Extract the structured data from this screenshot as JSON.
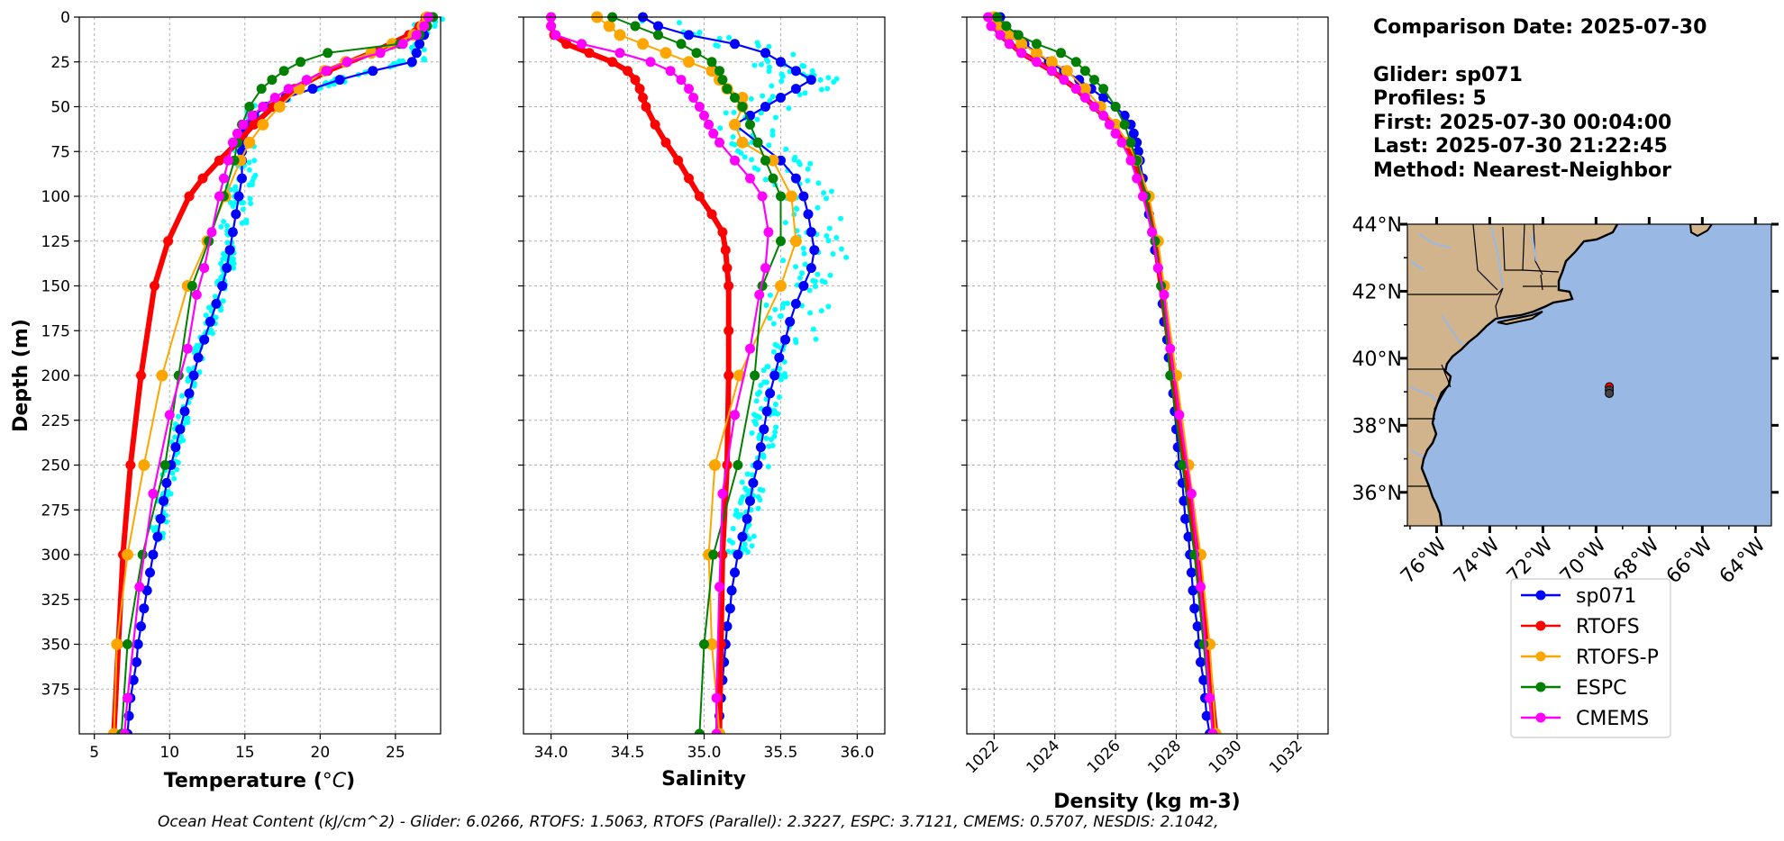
{
  "colors": {
    "sp071": "#0000ff",
    "RTOFS": "#ff0000",
    "RTOFS-P": "#ffa500",
    "ESPC": "#008000",
    "CMEMS": "#ff00ff",
    "scatter": "#00ffff",
    "land": "#d2b48c",
    "ocean": "#9ab8e4",
    "river": "#9ab8e4"
  },
  "info": {
    "comparison_date": "Comparison Date: 2025-07-30",
    "glider": "Glider: sp071",
    "profiles": "Profiles: 5",
    "first": "First: 2025-07-30 00:04:00",
    "last": "Last: 2025-07-30 21:22:45",
    "method": "Method: Nearest-Neighbor"
  },
  "footer": "Ocean Heat Content (kJ/cm^2) - Glider: 6.0266,  RTOFS: 1.5063,  RTOFS (Parallel): 2.3227,  ESPC: 3.7121,  CMEMS: 0.5707,  NESDIS: 2.1042,",
  "legend": [
    "sp071",
    "RTOFS",
    "RTOFS-P",
    "ESPC",
    "CMEMS"
  ],
  "chart_data": [
    {
      "type": "line",
      "title": "",
      "xlabel": "Temperature (°C)",
      "ylabel": "Depth (m)",
      "xlim": [
        4,
        28
      ],
      "ylim": [
        400,
        0
      ],
      "xticks": [
        5,
        10,
        15,
        20,
        25
      ],
      "yticks": [
        0,
        25,
        50,
        75,
        100,
        125,
        150,
        175,
        200,
        225,
        250,
        275,
        300,
        325,
        350,
        375
      ],
      "grid": true,
      "series": [
        {
          "name": "sp071",
          "depth": [
            0,
            5,
            10,
            15,
            20,
            25,
            30,
            35,
            40,
            45,
            50,
            55,
            60,
            65,
            70,
            75,
            80,
            90,
            100,
            110,
            120,
            130,
            140,
            150,
            160,
            170,
            180,
            190,
            200,
            210,
            220,
            230,
            240,
            250,
            260,
            270,
            280,
            290,
            300,
            310,
            320,
            330,
            340,
            350,
            360,
            370,
            380,
            390,
            400
          ],
          "values": [
            27.3,
            27.1,
            26.9,
            26.6,
            26.4,
            26.1,
            23.5,
            21.3,
            19.5,
            17.7,
            16.4,
            15.6,
            15.2,
            14.9,
            14.8,
            14.8,
            14.8,
            14.8,
            14.6,
            14.4,
            14.2,
            14.0,
            13.8,
            13.5,
            13.1,
            12.7,
            12.3,
            11.9,
            11.6,
            11.3,
            11.0,
            10.7,
            10.4,
            10.1,
            9.8,
            9.6,
            9.4,
            9.2,
            8.9,
            8.7,
            8.5,
            8.3,
            8.1,
            7.9,
            7.8,
            7.6,
            7.4,
            7.3,
            7.2
          ]
        },
        {
          "name": "RTOFS",
          "depth": [
            0,
            5,
            10,
            20,
            30,
            40,
            50,
            60,
            70,
            80,
            90,
            100,
            125,
            150,
            200,
            250,
            300,
            350,
            400
          ],
          "values": [
            27.0,
            26.6,
            25.9,
            23.4,
            20.5,
            18.3,
            16.9,
            15.6,
            14.5,
            13.3,
            12.2,
            11.3,
            9.9,
            9.0,
            8.1,
            7.4,
            6.9,
            6.6,
            6.3
          ]
        },
        {
          "name": "RTOFS-P",
          "depth": [
            0,
            5,
            10,
            15,
            20,
            25,
            30,
            40,
            50,
            60,
            70,
            80,
            100,
            125,
            150,
            200,
            250,
            300,
            350,
            400
          ],
          "values": [
            27.1,
            26.8,
            26.2,
            24.8,
            23.4,
            21.7,
            20.3,
            18.6,
            17.3,
            16.2,
            15.3,
            14.7,
            13.7,
            12.5,
            11.2,
            9.5,
            8.3,
            7.2,
            6.5,
            6.3
          ]
        },
        {
          "name": "ESPC",
          "depth": [
            0,
            5,
            10,
            15,
            20,
            25,
            30,
            35,
            40,
            50,
            60,
            70,
            80,
            100,
            125,
            150,
            200,
            250,
            300,
            350,
            400
          ],
          "values": [
            27.5,
            27.1,
            26.6,
            25.3,
            20.5,
            18.7,
            17.6,
            16.8,
            16.1,
            15.3,
            14.8,
            14.5,
            14.3,
            13.6,
            12.6,
            11.5,
            10.6,
            9.7,
            8.2,
            7.2,
            6.8
          ]
        },
        {
          "name": "CMEMS",
          "depth": [
            0,
            5,
            10,
            15,
            20,
            25,
            30,
            35,
            40,
            45,
            50,
            55,
            60,
            65,
            70,
            80,
            90,
            100,
            120,
            140,
            155,
            185,
            222,
            266,
            318,
            380,
            400
          ],
          "values": [
            27.2,
            26.9,
            26.4,
            25.5,
            24.0,
            21.8,
            20.4,
            19.1,
            17.9,
            17.0,
            16.2,
            15.5,
            14.9,
            14.5,
            14.2,
            13.9,
            13.6,
            13.3,
            12.8,
            12.3,
            11.8,
            11.2,
            10.0,
            8.9,
            8.0,
            7.2,
            7.0
          ]
        }
      ]
    },
    {
      "type": "line",
      "title": "",
      "xlabel": "Salinity",
      "ylabel": "",
      "xlim": [
        33.82,
        36.18
      ],
      "ylim": [
        400,
        0
      ],
      "xticks": [
        34.0,
        34.5,
        35.0,
        35.5,
        36.0
      ],
      "grid": true,
      "series": [
        {
          "name": "sp071",
          "depth": [
            0,
            5,
            10,
            15,
            20,
            25,
            30,
            35,
            40,
            45,
            50,
            55,
            60,
            70,
            80,
            90,
            100,
            110,
            120,
            130,
            140,
            150,
            160,
            170,
            180,
            190,
            200,
            210,
            220,
            230,
            240,
            250,
            260,
            270,
            280,
            290,
            300,
            310,
            320,
            330,
            340,
            350,
            360,
            370,
            380,
            390,
            400
          ],
          "values": [
            34.6,
            34.7,
            34.9,
            35.2,
            35.4,
            35.5,
            35.6,
            35.7,
            35.6,
            35.5,
            35.4,
            35.3,
            35.2,
            35.35,
            35.5,
            35.6,
            35.65,
            35.68,
            35.7,
            35.72,
            35.7,
            35.65,
            35.6,
            35.56,
            35.53,
            35.49,
            35.46,
            35.43,
            35.41,
            35.39,
            35.37,
            35.35,
            35.32,
            35.3,
            35.28,
            35.25,
            35.22,
            35.2,
            35.18,
            35.17,
            35.15,
            35.14,
            35.13,
            35.12,
            35.11,
            35.1,
            35.1
          ]
        },
        {
          "name": "RTOFS",
          "depth": [
            0,
            5,
            10,
            15,
            20,
            25,
            30,
            35,
            40,
            45,
            50,
            60,
            70,
            80,
            90,
            100,
            110,
            120,
            130,
            140,
            150,
            175,
            200,
            250,
            300,
            350,
            400
          ],
          "values": [
            34.0,
            34.0,
            34.02,
            34.1,
            34.25,
            34.4,
            34.5,
            34.55,
            34.58,
            34.6,
            34.62,
            34.68,
            34.75,
            34.83,
            34.9,
            34.97,
            35.05,
            35.12,
            35.14,
            35.15,
            35.16,
            35.16,
            35.16,
            35.15,
            35.12,
            35.11,
            35.1
          ]
        },
        {
          "name": "RTOFS-P",
          "depth": [
            0,
            5,
            10,
            15,
            20,
            25,
            30,
            35,
            40,
            45,
            50,
            60,
            70,
            80,
            100,
            125,
            150,
            200,
            250,
            300,
            350,
            400
          ],
          "values": [
            34.3,
            34.38,
            34.45,
            34.6,
            34.75,
            34.9,
            35.05,
            35.1,
            35.15,
            35.25,
            35.25,
            35.2,
            35.25,
            35.45,
            35.57,
            35.6,
            35.5,
            35.23,
            35.07,
            35.03,
            35.05,
            35.1
          ]
        },
        {
          "name": "ESPC",
          "depth": [
            0,
            5,
            10,
            15,
            20,
            25,
            30,
            35,
            40,
            45,
            50,
            60,
            70,
            80,
            90,
            100,
            125,
            150,
            200,
            250,
            300,
            350,
            400
          ],
          "values": [
            34.4,
            34.55,
            34.7,
            34.85,
            34.95,
            35.05,
            35.1,
            35.12,
            35.15,
            35.2,
            35.25,
            35.3,
            35.35,
            35.4,
            35.45,
            35.5,
            35.5,
            35.38,
            35.33,
            35.22,
            35.06,
            35.0,
            34.97
          ]
        },
        {
          "name": "CMEMS",
          "depth": [
            0,
            5,
            10,
            15,
            20,
            25,
            30,
            35,
            40,
            45,
            50,
            55,
            60,
            65,
            70,
            80,
            90,
            100,
            120,
            140,
            155,
            185,
            222,
            266,
            318,
            380,
            400
          ],
          "values": [
            34.0,
            34.0,
            34.03,
            34.2,
            34.45,
            34.65,
            34.78,
            34.85,
            34.9,
            34.93,
            34.97,
            35.0,
            35.03,
            35.06,
            35.1,
            35.2,
            35.3,
            35.38,
            35.42,
            35.4,
            35.36,
            35.3,
            35.2,
            35.12,
            35.1,
            35.08,
            35.08
          ]
        }
      ]
    },
    {
      "type": "line",
      "title": "",
      "xlabel": "Density (kg m-3)",
      "ylabel": "",
      "xlim": [
        1021.1,
        1033.0
      ],
      "ylim": [
        400,
        0
      ],
      "xticks": [
        1022,
        1024,
        1026,
        1028,
        1030,
        1032
      ],
      "grid": true,
      "series": [
        {
          "name": "sp071",
          "depth": [
            0,
            5,
            10,
            15,
            20,
            25,
            30,
            35,
            40,
            45,
            50,
            55,
            60,
            65,
            70,
            75,
            80,
            90,
            100,
            110,
            120,
            130,
            140,
            150,
            160,
            170,
            180,
            190,
            200,
            210,
            220,
            230,
            240,
            250,
            260,
            270,
            280,
            290,
            300,
            310,
            320,
            330,
            340,
            350,
            360,
            370,
            380,
            390,
            400
          ],
          "values": [
            1022.2,
            1022.4,
            1022.7,
            1023.0,
            1023.4,
            1023.8,
            1024.3,
            1024.8,
            1025.2,
            1025.6,
            1026.0,
            1026.3,
            1026.5,
            1026.6,
            1026.7,
            1026.75,
            1026.8,
            1026.9,
            1027.0,
            1027.1,
            1027.2,
            1027.3,
            1027.4,
            1027.5,
            1027.55,
            1027.6,
            1027.7,
            1027.75,
            1027.8,
            1027.9,
            1027.95,
            1028.0,
            1028.05,
            1028.1,
            1028.2,
            1028.25,
            1028.3,
            1028.4,
            1028.45,
            1028.5,
            1028.55,
            1028.6,
            1028.7,
            1028.75,
            1028.8,
            1028.9,
            1028.95,
            1029.0,
            1029.1
          ]
        },
        {
          "name": "RTOFS",
          "depth": [
            0,
            5,
            10,
            20,
            30,
            40,
            50,
            60,
            70,
            80,
            90,
            100,
            125,
            150,
            200,
            250,
            300,
            350,
            400
          ],
          "values": [
            1021.9,
            1022.0,
            1022.2,
            1022.9,
            1023.9,
            1024.7,
            1025.3,
            1025.9,
            1026.3,
            1026.6,
            1026.8,
            1027.0,
            1027.3,
            1027.5,
            1027.9,
            1028.3,
            1028.7,
            1029.0,
            1029.3
          ]
        },
        {
          "name": "RTOFS-P",
          "depth": [
            0,
            5,
            10,
            15,
            20,
            25,
            30,
            40,
            50,
            60,
            70,
            80,
            100,
            125,
            150,
            200,
            250,
            300,
            350,
            400
          ],
          "values": [
            1022.0,
            1022.2,
            1022.5,
            1022.9,
            1023.4,
            1023.9,
            1024.4,
            1025.0,
            1025.5,
            1026.0,
            1026.4,
            1026.7,
            1027.1,
            1027.4,
            1027.6,
            1028.0,
            1028.4,
            1028.8,
            1029.1,
            1029.3
          ]
        },
        {
          "name": "ESPC",
          "depth": [
            0,
            5,
            10,
            15,
            20,
            25,
            30,
            35,
            40,
            50,
            60,
            70,
            80,
            100,
            125,
            150,
            200,
            250,
            300,
            350,
            400
          ],
          "values": [
            1022.1,
            1022.4,
            1022.8,
            1023.4,
            1024.2,
            1024.7,
            1025.0,
            1025.3,
            1025.6,
            1026.0,
            1026.3,
            1026.5,
            1026.7,
            1027.0,
            1027.3,
            1027.5,
            1027.8,
            1028.2,
            1028.6,
            1028.9,
            1029.2
          ]
        },
        {
          "name": "CMEMS",
          "depth": [
            0,
            5,
            10,
            15,
            20,
            25,
            30,
            35,
            40,
            45,
            50,
            55,
            60,
            65,
            70,
            80,
            90,
            100,
            120,
            140,
            155,
            185,
            222,
            266,
            318,
            380,
            400
          ],
          "values": [
            1021.8,
            1021.9,
            1022.2,
            1022.5,
            1022.9,
            1023.4,
            1023.9,
            1024.3,
            1024.7,
            1025.0,
            1025.3,
            1025.6,
            1025.8,
            1026.0,
            1026.2,
            1026.5,
            1026.7,
            1026.9,
            1027.2,
            1027.4,
            1027.6,
            1027.8,
            1028.1,
            1028.5,
            1028.8,
            1029.1,
            1029.2
          ]
        }
      ]
    },
    {
      "type": "map",
      "title": "",
      "lon_range": [
        -77.1,
        -63.4
      ],
      "lat_range": [
        35.0,
        44.0
      ],
      "lat_ticks": [
        "44°N",
        "42°N",
        "40°N",
        "38°N",
        "36°N"
      ],
      "lat_values": [
        44,
        42,
        40,
        38,
        36
      ],
      "lon_ticks": [
        "76°W",
        "74°W",
        "72°W",
        "70°W",
        "68°W",
        "66°W",
        "64°W"
      ],
      "lon_values": [
        -76,
        -74,
        -72,
        -70,
        -68,
        -66,
        -64
      ],
      "glider_positions": [
        {
          "lon": -69.5,
          "lat": 39.15
        },
        {
          "lon": -69.5,
          "lat": 39.05
        },
        {
          "lon": -69.5,
          "lat": 38.95
        }
      ]
    }
  ]
}
